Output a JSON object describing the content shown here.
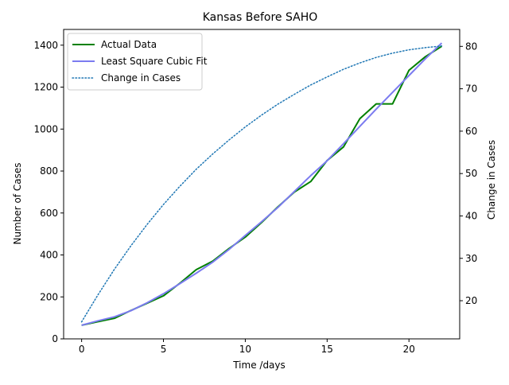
{
  "chart_data": {
    "type": "line",
    "title": "Kansas Before SAHO",
    "xlabel": "Time /days",
    "ylabel": "Number of Cases",
    "y2label": "Change in Cases",
    "xlim": [
      -1.1,
      23.1
    ],
    "ylim": [
      0,
      1475
    ],
    "y2lim": [
      11,
      84
    ],
    "xticks": [
      0,
      5,
      10,
      15,
      20
    ],
    "yticks": [
      0,
      200,
      400,
      600,
      800,
      1000,
      1200,
      1400
    ],
    "y2ticks": [
      20,
      30,
      40,
      50,
      60,
      70,
      80
    ],
    "legend_position": "upper-left",
    "grid": false,
    "series": [
      {
        "name": "Actual Data",
        "axis": "left",
        "style": "solid",
        "color": "#008000",
        "x": [
          0,
          1,
          2,
          3,
          4,
          5,
          6,
          7,
          8,
          9,
          10,
          11,
          12,
          13,
          14,
          15,
          16,
          17,
          18,
          19,
          20,
          21,
          22
        ],
        "values": [
          65,
          82,
          98,
          135,
          170,
          205,
          265,
          330,
          370,
          430,
          485,
          555,
          630,
          700,
          750,
          850,
          915,
          1050,
          1120,
          1120,
          1280,
          1345,
          1395
        ]
      },
      {
        "name": "Least Square Cubic Fit",
        "axis": "left",
        "style": "solid",
        "color": "#7b7bf0",
        "x": [
          0,
          1,
          2,
          3,
          4,
          5,
          6,
          7,
          8,
          9,
          10,
          11,
          12,
          13,
          14,
          15,
          16,
          17,
          18,
          19,
          20,
          21,
          22
        ],
        "values": [
          65,
          86,
          105,
          134,
          172,
          215,
          263,
          313,
          365,
          426,
          493,
          559,
          627,
          703,
          778,
          849,
          930,
          1013,
          1095,
          1175,
          1255,
          1335,
          1410
        ]
      },
      {
        "name": "Change in Cases",
        "axis": "right",
        "style": "dotted",
        "color": "#1f77b4",
        "x": [
          0,
          1,
          2,
          3,
          4,
          5,
          6,
          7,
          8,
          9,
          10,
          11,
          12,
          13,
          14,
          15,
          16,
          17,
          18,
          19,
          20,
          21,
          22
        ],
        "values": [
          15.0,
          21.4,
          27.4,
          32.9,
          38.0,
          42.7,
          47.0,
          51.0,
          54.6,
          57.9,
          61.0,
          63.8,
          66.4,
          68.7,
          70.9,
          72.8,
          74.6,
          76.1,
          77.4,
          78.4,
          79.2,
          79.7,
          80.1
        ]
      }
    ]
  }
}
